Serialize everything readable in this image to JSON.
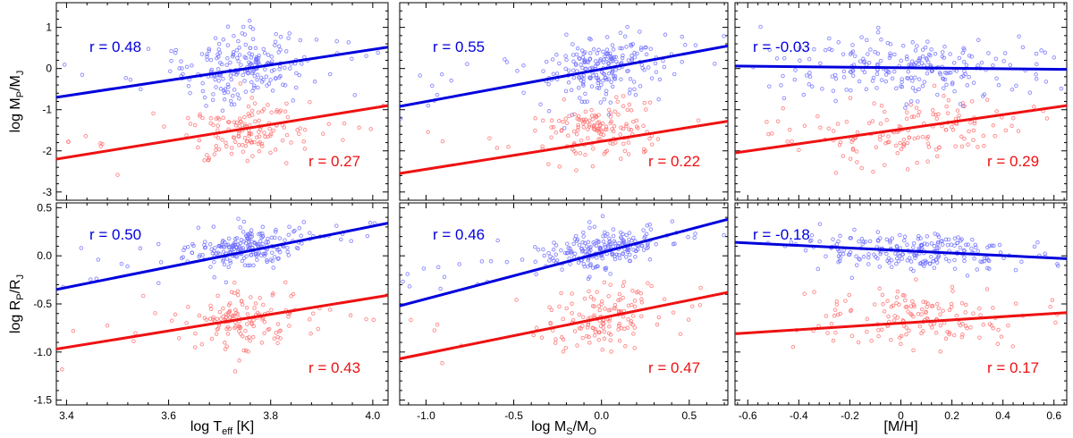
{
  "figure": {
    "colors": {
      "blue": "#0000dd",
      "red": "#ee1111",
      "blue_points": "#6a6aff",
      "red_points": "#ff6a6a"
    },
    "ylabels": {
      "top": {
        "base": "log M",
        "sub1": "P",
        "mid": "/M",
        "sub2": "J"
      },
      "bottom": {
        "base": "log R",
        "sub1": "P",
        "mid": "/R",
        "sub2": "J"
      }
    },
    "xlabels": [
      {
        "base": "log T",
        "sub": "eff",
        "tail": " [K]"
      },
      {
        "base": "log M",
        "sub": "S",
        "mid": "/M",
        "sub2": "O"
      },
      {
        "base": "[M/H]"
      }
    ]
  },
  "chart_data": [
    {
      "type": "scatter",
      "panel": "top-left",
      "xlim": [
        3.38,
        4.03
      ],
      "ylim": [
        -3.2,
        1.6
      ],
      "xticks": [
        "3.4",
        "3.6",
        "3.8",
        "4.0"
      ],
      "yticks": [
        "-3",
        "-2",
        "-1",
        "0",
        "1"
      ],
      "xcenter": 3.75,
      "xspread": 0.06,
      "series": [
        {
          "name": "blue",
          "r": "r =  0.48",
          "fit": [
            [
              3.38,
              -0.7
            ],
            [
              4.03,
              0.52
            ]
          ],
          "ycenter": 0.0,
          "yspread": 0.4
        },
        {
          "name": "red",
          "r": "r =  0.27",
          "fit": [
            [
              3.38,
              -2.2
            ],
            [
              4.03,
              -0.9
            ]
          ],
          "ycenter": -1.5,
          "yspread": 0.35
        }
      ]
    },
    {
      "type": "scatter",
      "panel": "top-middle",
      "xlim": [
        -1.15,
        0.72
      ],
      "ylim": [
        -3.2,
        1.6
      ],
      "xticks": [
        "-1.0",
        "-0.5",
        "0.0",
        "0.5"
      ],
      "yticks": [
        "-3",
        "-2",
        "-1",
        "0",
        "1"
      ],
      "xcenter": 0.0,
      "xspread": 0.15,
      "series": [
        {
          "name": "blue",
          "r": "r =  0.55",
          "fit": [
            [
              -1.15,
              -0.92
            ],
            [
              0.72,
              0.55
            ]
          ],
          "ycenter": 0.0,
          "yspread": 0.4
        },
        {
          "name": "red",
          "r": "r =  0.22",
          "fit": [
            [
              -1.15,
              -2.55
            ],
            [
              0.72,
              -1.28
            ]
          ],
          "ycenter": -1.5,
          "yspread": 0.35
        }
      ]
    },
    {
      "type": "scatter",
      "panel": "top-right",
      "xlim": [
        -0.65,
        0.65
      ],
      "ylim": [
        -3.2,
        1.6
      ],
      "xticks": [
        "-0.6",
        "-0.4",
        "-0.2",
        "0",
        "0.2",
        "0.4",
        "0.6"
      ],
      "yticks": [
        "-3",
        "-2",
        "-1",
        "0",
        "1"
      ],
      "xcenter": 0.05,
      "xspread": 0.2,
      "series": [
        {
          "name": "blue",
          "r": "r =  -0.03",
          "fit": [
            [
              -0.65,
              0.06
            ],
            [
              0.65,
              -0.02
            ]
          ],
          "ycenter": 0.0,
          "yspread": 0.4
        },
        {
          "name": "red",
          "r": "r =  0.29",
          "fit": [
            [
              -0.65,
              -2.05
            ],
            [
              0.65,
              -0.9
            ]
          ],
          "ycenter": -1.5,
          "yspread": 0.35
        }
      ]
    },
    {
      "type": "scatter",
      "panel": "bottom-left",
      "xlim": [
        3.38,
        4.03
      ],
      "ylim": [
        -1.55,
        0.55
      ],
      "xticks": [
        "3.4",
        "3.6",
        "3.8",
        "4.0"
      ],
      "yticks": [
        "-1.5",
        "-1.0",
        "-0.5",
        "0.0",
        "0.5"
      ],
      "xcenter": 3.75,
      "xspread": 0.06,
      "series": [
        {
          "name": "blue",
          "r": "r =  0.50",
          "fit": [
            [
              3.38,
              -0.35
            ],
            [
              4.03,
              0.34
            ]
          ],
          "ycenter": 0.08,
          "yspread": 0.1
        },
        {
          "name": "red",
          "r": "r =  0.43",
          "fit": [
            [
              3.38,
              -0.97
            ],
            [
              4.03,
              -0.41
            ]
          ],
          "ycenter": -0.65,
          "yspread": 0.16
        }
      ]
    },
    {
      "type": "scatter",
      "panel": "bottom-middle",
      "xlim": [
        -1.15,
        0.72
      ],
      "ylim": [
        -1.55,
        0.55
      ],
      "xticks": [
        "-1.0",
        "-0.5",
        "0.0",
        "0.5"
      ],
      "yticks": [
        "-1.5",
        "-1.0",
        "-0.5",
        "0.0",
        "0.5"
      ],
      "xcenter": 0.0,
      "xspread": 0.15,
      "series": [
        {
          "name": "blue",
          "r": "r =  0.46",
          "fit": [
            [
              -1.15,
              -0.52
            ],
            [
              0.72,
              0.38
            ]
          ],
          "ycenter": 0.08,
          "yspread": 0.1
        },
        {
          "name": "red",
          "r": "r =  0.47",
          "fit": [
            [
              -1.15,
              -1.07
            ],
            [
              0.72,
              -0.38
            ]
          ],
          "ycenter": -0.65,
          "yspread": 0.16
        }
      ]
    },
    {
      "type": "scatter",
      "panel": "bottom-right",
      "xlim": [
        -0.65,
        0.65
      ],
      "ylim": [
        -1.55,
        0.55
      ],
      "xticks": [
        "-0.6",
        "-0.4",
        "-0.2",
        "0",
        "0.2",
        "0.4",
        "0.6"
      ],
      "yticks": [
        "-1.5",
        "-1.0",
        "-0.5",
        "0.0",
        "0.5"
      ],
      "xcenter": 0.05,
      "xspread": 0.2,
      "series": [
        {
          "name": "blue",
          "r": "r =  -0.18",
          "fit": [
            [
              -0.65,
              0.14
            ],
            [
              0.65,
              -0.03
            ]
          ],
          "ycenter": 0.06,
          "yspread": 0.1
        },
        {
          "name": "red",
          "r": "r =  0.17",
          "fit": [
            [
              -0.65,
              -0.81
            ],
            [
              0.65,
              -0.59
            ]
          ],
          "ycenter": -0.66,
          "yspread": 0.16
        }
      ]
    }
  ]
}
